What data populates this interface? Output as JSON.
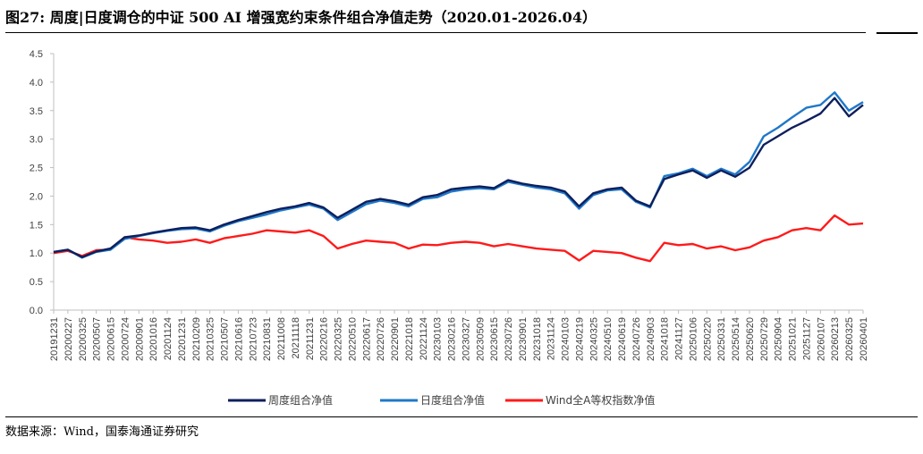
{
  "figure": {
    "title": "图27:  周度|日度调仓的中证 500 AI 增强宽约束条件组合净值走势（2020.01-2026.04）",
    "source": "数据来源：Wind，国泰海通证券研究"
  },
  "chart_data": {
    "type": "line",
    "ylim": [
      0.0,
      4.5
    ],
    "yticks": [
      "0.0",
      "0.5",
      "1.0",
      "1.5",
      "2.0",
      "2.5",
      "3.0",
      "3.5",
      "4.0",
      "4.5"
    ],
    "grid": false,
    "legend_position": "bottom",
    "x": [
      "20191231",
      "20200227",
      "20200325",
      "20200507",
      "20200615",
      "20200724",
      "20200901",
      "20201016",
      "20201124",
      "20201231",
      "20210209",
      "20210325",
      "20210507",
      "20210616",
      "20210723",
      "20210831",
      "20211008",
      "20211118",
      "20211231",
      "20220216",
      "20220325",
      "20220510",
      "20220617",
      "20220726",
      "20220901",
      "20221018",
      "20221124",
      "20230103",
      "20230216",
      "20230327",
      "20230509",
      "20230615",
      "20230726",
      "20230901",
      "20231018",
      "20231124",
      "20240103",
      "20240219",
      "20240325",
      "20240510",
      "20240619",
      "20240726",
      "20240903",
      "20241018",
      "20241127",
      "20250106",
      "20250220",
      "20250331",
      "20250514",
      "20250620",
      "20250729",
      "20250904",
      "20251021",
      "20251127",
      "20260107",
      "20260213",
      "20260325",
      "20260401"
    ],
    "series": [
      {
        "name": "周度组合净值",
        "color": "#0d1f5c",
        "values": [
          1.02,
          1.06,
          0.93,
          1.03,
          1.08,
          1.28,
          1.31,
          1.36,
          1.4,
          1.44,
          1.45,
          1.4,
          1.5,
          1.58,
          1.65,
          1.72,
          1.78,
          1.82,
          1.88,
          1.8,
          1.62,
          1.76,
          1.9,
          1.95,
          1.91,
          1.85,
          1.98,
          2.02,
          2.12,
          2.15,
          2.17,
          2.14,
          2.28,
          2.22,
          2.18,
          2.15,
          2.08,
          1.82,
          2.05,
          2.12,
          2.15,
          1.92,
          1.82,
          2.3,
          2.38,
          2.45,
          2.32,
          2.45,
          2.34,
          2.5,
          2.9,
          3.05,
          3.2,
          3.32,
          3.45,
          3.72,
          3.4,
          3.6
        ]
      },
      {
        "name": "日度组合净值",
        "color": "#1f78c8",
        "values": [
          1.02,
          1.06,
          0.92,
          1.02,
          1.06,
          1.25,
          1.3,
          1.35,
          1.39,
          1.42,
          1.43,
          1.38,
          1.48,
          1.56,
          1.62,
          1.68,
          1.75,
          1.8,
          1.85,
          1.78,
          1.58,
          1.72,
          1.86,
          1.92,
          1.88,
          1.82,
          1.95,
          1.98,
          2.08,
          2.12,
          2.14,
          2.12,
          2.25,
          2.2,
          2.15,
          2.12,
          2.05,
          1.78,
          2.02,
          2.1,
          2.12,
          1.9,
          1.8,
          2.35,
          2.4,
          2.48,
          2.35,
          2.48,
          2.38,
          2.6,
          3.05,
          3.2,
          3.38,
          3.55,
          3.6,
          3.82,
          3.5,
          3.65
        ]
      },
      {
        "name": "Wind全A等权指数净值",
        "color": "#ff1a1a",
        "values": [
          1.0,
          1.04,
          0.95,
          1.05,
          1.06,
          1.28,
          1.24,
          1.22,
          1.18,
          1.2,
          1.24,
          1.18,
          1.26,
          1.3,
          1.34,
          1.4,
          1.38,
          1.36,
          1.4,
          1.3,
          1.08,
          1.16,
          1.22,
          1.2,
          1.18,
          1.08,
          1.15,
          1.14,
          1.18,
          1.2,
          1.18,
          1.12,
          1.16,
          1.12,
          1.08,
          1.06,
          1.04,
          0.87,
          1.04,
          1.02,
          1.0,
          0.92,
          0.86,
          1.18,
          1.14,
          1.16,
          1.08,
          1.12,
          1.05,
          1.1,
          1.22,
          1.28,
          1.4,
          1.44,
          1.4,
          1.66,
          1.5,
          1.52
        ]
      }
    ]
  }
}
